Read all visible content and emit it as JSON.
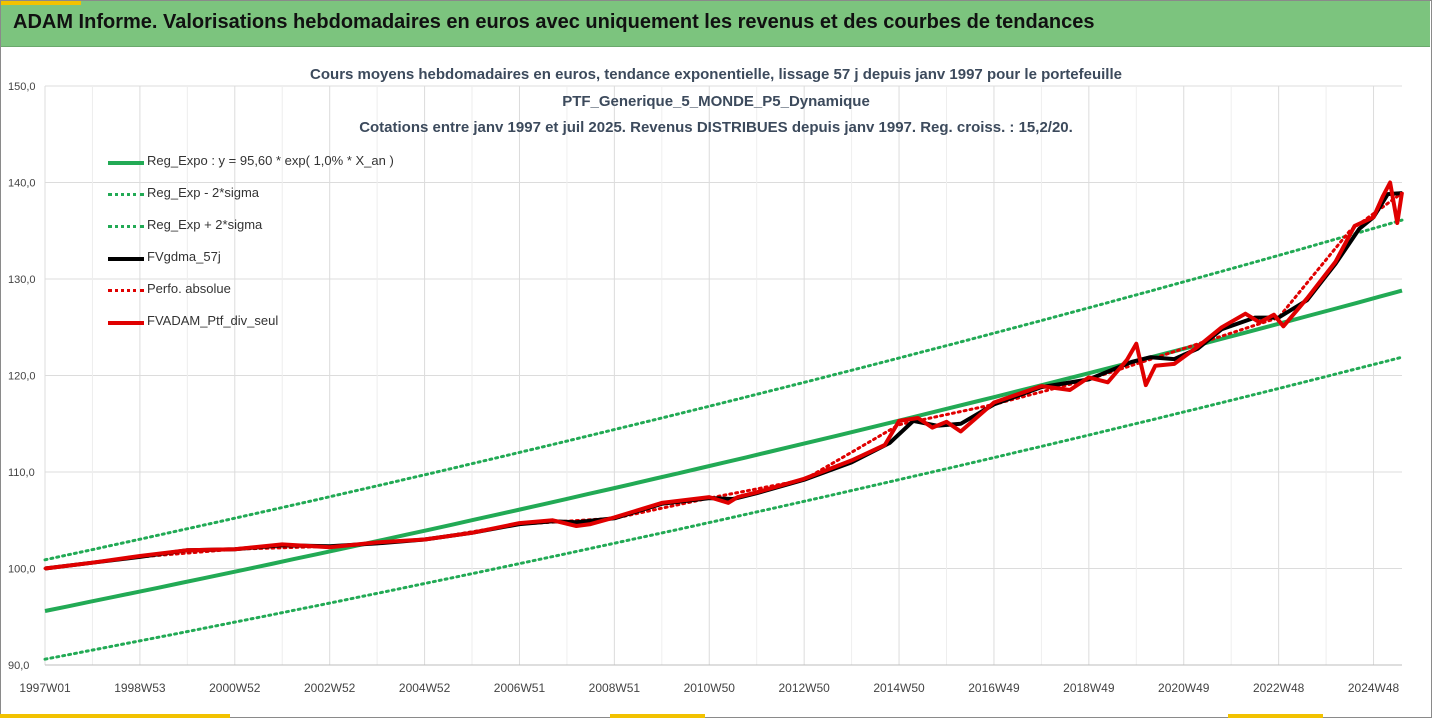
{
  "banner": {
    "title": "ADAM Informe. Valorisations hebdomadaires en euros avec uniquement les revenus et des courbes de tendances"
  },
  "colors": {
    "banner_bg": "#7cc47e",
    "reg_expo": "#22aa55",
    "sigma": "#22aa55",
    "fvgdma": "#000000",
    "perfo": "#e00000",
    "fvadam": "#e00000",
    "grid": "#dcdcdc"
  },
  "chart_data": {
    "type": "line",
    "title_lines": [
      "Cours moyens hebdomadaires  en euros, tendance exponentielle, lissage 57 j depuis janv 1997 pour le portefeuille",
      "PTF_Generique_5_MONDE_P5_Dynamique",
      "Cotations  entre janv 1997 et juil 2025. Revenus DISTRIBUES depuis janv 1997. Reg. croiss. : 15,2/20."
    ],
    "xlabel": "",
    "ylabel": "",
    "x_range": [
      1997.0,
      2025.6
    ],
    "ylim": [
      90,
      150
    ],
    "y_ticks": [
      "90,0",
      "100,0",
      "110,0",
      "120,0",
      "130,0",
      "140,0",
      "150,0"
    ],
    "x_ticks": [
      {
        "label": "1997W01",
        "x": 1997.0
      },
      {
        "label": "1998W53",
        "x": 1999.0
      },
      {
        "label": "2000W52",
        "x": 2001.0
      },
      {
        "label": "2002W52",
        "x": 2003.0
      },
      {
        "label": "2004W52",
        "x": 2005.0
      },
      {
        "label": "2006W51",
        "x": 2007.0
      },
      {
        "label": "2008W51",
        "x": 2009.0
      },
      {
        "label": "2010W50",
        "x": 2011.0
      },
      {
        "label": "2012W50",
        "x": 2013.0
      },
      {
        "label": "2014W50",
        "x": 2015.0
      },
      {
        "label": "2016W49",
        "x": 2017.0
      },
      {
        "label": "2018W49",
        "x": 2019.0
      },
      {
        "label": "2020W49",
        "x": 2021.0
      },
      {
        "label": "2022W48",
        "x": 2023.0
      },
      {
        "label": "2024W48",
        "x": 2025.0
      }
    ],
    "grid": true,
    "legend_position": "top-left",
    "series": [
      {
        "name": "Reg_Expo : y = 95,60 * exp( 1,0% *  X_an )",
        "style": "solid-thick",
        "color": "#22aa55",
        "x": [
          1997.0,
          2025.6
        ],
        "y": [
          95.6,
          128.8
        ]
      },
      {
        "name": "Reg_Exp - 2*sigma",
        "style": "dotted",
        "color": "#22aa55",
        "x": [
          1997.0,
          2025.6
        ],
        "y": [
          90.6,
          121.9
        ]
      },
      {
        "name": "Reg_Exp + 2*sigma",
        "style": "dotted",
        "color": "#22aa55",
        "x": [
          1997.0,
          2025.6
        ],
        "y": [
          100.9,
          136.1
        ]
      },
      {
        "name": "FVgdma_57j",
        "style": "solid-thick",
        "color": "#000000",
        "x": [
          1997.0,
          1998.0,
          1999.0,
          2000.0,
          2001.0,
          2002.0,
          2003.0,
          2004.0,
          2005.0,
          2006.0,
          2007.0,
          2007.7,
          2008.2,
          2009.0,
          2010.0,
          2011.0,
          2011.5,
          2012.0,
          2013.0,
          2014.0,
          2014.8,
          2015.3,
          2015.8,
          2016.3,
          2017.0,
          2018.0,
          2019.0,
          2019.9,
          2020.3,
          2020.8,
          2021.3,
          2021.8,
          2022.5,
          2023.0,
          2023.6,
          2024.2,
          2024.7,
          2025.0,
          2025.3,
          2025.6
        ],
        "y": [
          100.0,
          100.6,
          101.2,
          101.9,
          102.0,
          102.4,
          102.3,
          102.6,
          103.0,
          103.7,
          104.6,
          104.9,
          104.8,
          105.2,
          106.7,
          107.3,
          107.2,
          107.8,
          109.2,
          111.0,
          113.0,
          115.3,
          114.8,
          115.0,
          117.0,
          118.8,
          119.6,
          121.4,
          121.9,
          121.7,
          122.8,
          124.8,
          126.0,
          126.0,
          127.8,
          131.6,
          135.2,
          136.4,
          138.8,
          138.9
        ]
      },
      {
        "name": "Perfo. absolue",
        "style": "dotted",
        "color": "#e00000",
        "x": [
          1997.0,
          1999.0,
          2001.0,
          2003.0,
          2005.0,
          2007.0,
          2009.0,
          2011.0,
          2013.0,
          2015.0,
          2017.0,
          2019.0,
          2021.0,
          2023.0,
          2024.5,
          2025.6
        ],
        "y": [
          100.0,
          101.2,
          102.0,
          102.3,
          103.0,
          104.6,
          105.2,
          107.3,
          109.2,
          114.9,
          117.0,
          119.6,
          122.8,
          126.0,
          135.0,
          138.9
        ]
      },
      {
        "name": "FVADAM_Ptf_div_seul",
        "style": "solid-thick",
        "color": "#e00000",
        "x": [
          1997.0,
          1998.0,
          1999.0,
          2000.0,
          2001.0,
          2002.0,
          2003.0,
          2004.0,
          2005.0,
          2006.0,
          2007.0,
          2007.7,
          2008.2,
          2008.5,
          2009.0,
          2010.0,
          2011.0,
          2011.4,
          2011.6,
          2012.0,
          2013.0,
          2014.0,
          2014.7,
          2015.0,
          2015.4,
          2015.7,
          2016.0,
          2016.3,
          2017.0,
          2018.0,
          2018.6,
          2019.0,
          2019.4,
          2019.8,
          2020.0,
          2020.2,
          2020.4,
          2020.8,
          2021.3,
          2021.8,
          2022.3,
          2022.6,
          2022.9,
          2023.1,
          2023.6,
          2024.2,
          2024.6,
          2025.0,
          2025.2,
          2025.35,
          2025.5,
          2025.6
        ],
        "y": [
          100.0,
          100.6,
          101.3,
          101.9,
          102.0,
          102.5,
          102.2,
          102.7,
          103.0,
          103.7,
          104.7,
          105.0,
          104.4,
          104.6,
          105.3,
          106.8,
          107.4,
          106.8,
          107.4,
          107.9,
          109.3,
          111.2,
          112.8,
          115.3,
          115.6,
          114.6,
          115.2,
          114.2,
          117.2,
          118.9,
          118.5,
          119.8,
          119.3,
          121.6,
          123.3,
          119.0,
          121.0,
          121.2,
          123.0,
          125.0,
          126.4,
          125.5,
          126.3,
          125.1,
          128.0,
          131.8,
          135.5,
          136.4,
          138.6,
          140.0,
          135.8,
          139.0
        ]
      }
    ]
  }
}
